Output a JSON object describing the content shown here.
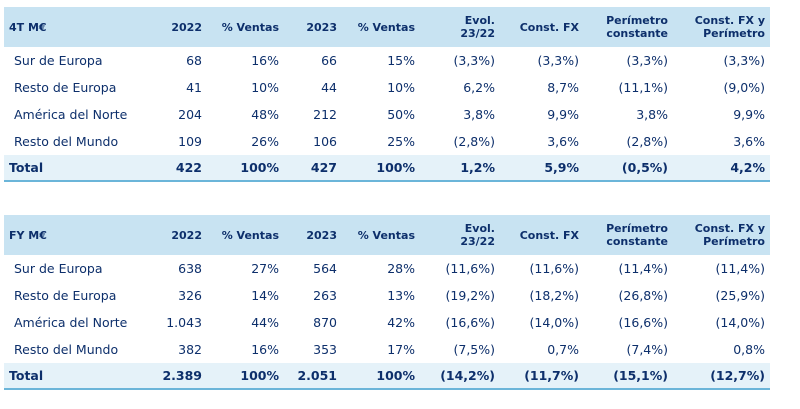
{
  "table_4t": {
    "headers": [
      "4T M€",
      "2022",
      "% Ventas",
      "2023",
      "% Ventas",
      "Evol.\n23/22",
      "Const. FX",
      "Perímetro\nconstante",
      "Const. FX y\nPerímetro"
    ],
    "rows": [
      [
        "Sur de Europa",
        "68",
        "16%",
        "66",
        "15%",
        "(3,3%)",
        "(3,3%)",
        "(3,3%)",
        "(3,3%)"
      ],
      [
        "Resto de Europa",
        "41",
        "10%",
        "44",
        "10%",
        "6,2%",
        "8,7%",
        "(11,1%)",
        "(9,0%)"
      ],
      [
        "América del Norte",
        "204",
        "48%",
        "212",
        "50%",
        "3,8%",
        "9,9%",
        "3,8%",
        "9,9%"
      ],
      [
        "Resto del Mundo",
        "109",
        "26%",
        "106",
        "25%",
        "(2,8%)",
        "3,6%",
        "(2,8%)",
        "3,6%"
      ]
    ],
    "total": [
      "Total",
      "422",
      "100%",
      "427",
      "100%",
      "1,2%",
      "5,9%",
      "(0,5%)",
      "4,2%"
    ]
  },
  "table_fy": {
    "headers": [
      "FY M€",
      "2022",
      "% Ventas",
      "2023",
      "% Ventas",
      "Evol.\n23/22",
      "Const. FX",
      "Perímetro\nconstante",
      "Const. FX y\nPerímetro"
    ],
    "rows": [
      [
        "Sur de Europa",
        "638",
        "27%",
        "564",
        "28%",
        "(11,6%)",
        "(11,6%)",
        "(11,4%)",
        "(11,4%)"
      ],
      [
        "Resto de Europa",
        "326",
        "14%",
        "263",
        "13%",
        "(19,2%)",
        "(18,2%)",
        "(26,8%)",
        "(25,9%)"
      ],
      [
        "América del Norte",
        "1.043",
        "44%",
        "870",
        "42%",
        "(16,6%)",
        "(14,0%)",
        "(16,6%)",
        "(14,0%)"
      ],
      [
        "Resto del Mundo",
        "382",
        "16%",
        "353",
        "17%",
        "(7,5%)",
        "0,7%",
        "(7,4%)",
        "0,8%"
      ]
    ],
    "total": [
      "Total",
      "2.389",
      "100%",
      "2.051",
      "100%",
      "(14,2%)",
      "(11,7%)",
      "(15,1%)",
      "(12,7%)"
    ]
  },
  "colors": {
    "header_bg": "#c8e3f2",
    "total_bg": "#e5f2f9",
    "text": "#0d2f6b",
    "rule": "#6bb5d9"
  }
}
